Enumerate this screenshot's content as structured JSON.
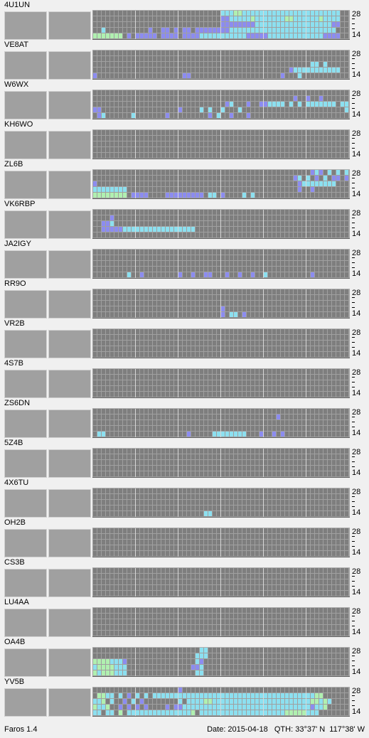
{
  "app": {
    "name": "Faros 1.4"
  },
  "status": {
    "date": "Date: 2015-04-18",
    "qth": "QTH: 33°37' N  117°38' W"
  },
  "axis": {
    "top_label": "28",
    "bottom_label": "14",
    "rows": 5,
    "columns": 60
  },
  "colors": {
    "empty": "#7e7e7e",
    "background": "#a0a0a0",
    "weak": "#8c8cf0",
    "medium": "#8ce0f0",
    "strong": "#b0f0b0",
    "very_strong": "#f0f0a0"
  },
  "beacons": [
    {
      "call": "4U1UN",
      "rows": [
        "                              2223322222222222222222222222",
        "                              1122222322222223322222232222",
        "                              1111111122222222222222222211",
        "  2          1  11 1 11 111111112222222222222222222222222 ",
        "3333333 1 11111 1111 1111222222222221111122222222222221111 "
      ]
    },
    {
      "call": "VE8AT",
      "rows": [
        "                                                            ",
        "                                                            ",
        "                                                   22 2     ",
        "                                              122222222222  ",
        "1                    11                     1   2           "
      ]
    },
    {
      "call": "W6WX",
      "rows": [
        "                                                            ",
        "                                               1  1  1      ",
        "                               12   1  112222 2 2 2222222 22",
        "11                  1    2 2  2   2                        2",
        " 12      2       1         1 2  1   1                       "
      ]
    },
    {
      "call": "KH6WO",
      "rows": [
        "",
        "",
        "",
        "",
        ""
      ]
    },
    {
      "call": "ZL6B",
      "rows": [
        "                                                   121 2 2 2",
        "                                               12 2 1 2 11 1",
        "1                                               122222222  ",
        "22222222                                        1  1       ",
        "33333333 1111    111111111 22 1    2 2               "
      ]
    },
    {
      "call": "VK6RBP",
      "rows": [
        "                                                            ",
        "    1                                                       ",
        "  112                                                       ",
        "  1111122222222222222222                                   ",
        "                                                            "
      ]
    },
    {
      "call": "JA2IGY",
      "rows": [
        "                                                            ",
        "                                                            ",
        "                                                            ",
        "                                                            ",
        "        2  1        1  1  11   1  1  1  2          1         "
      ]
    },
    {
      "call": "RR9O",
      "rows": [
        "",
        "",
        "",
        "                              1                              ",
        "                              1 22 1                         "
      ]
    },
    {
      "call": "VR2B",
      "rows": [
        "",
        "",
        "",
        "",
        ""
      ]
    },
    {
      "call": "4S7B",
      "rows": [
        "",
        "",
        "",
        "",
        ""
      ]
    },
    {
      "call": "ZS6DN",
      "rows": [
        "",
        "                                           1                ",
        "",
        "",
        " 22                   1     22222222   1  1 1             "
      ]
    },
    {
      "call": "5Z4B",
      "rows": [
        "",
        "",
        "",
        "",
        ""
      ]
    },
    {
      "call": "4X6TU",
      "rows": [
        "",
        "",
        "",
        "",
        "                          22                                 "
      ]
    },
    {
      "call": "OH2B",
      "rows": [
        "",
        "",
        "",
        "",
        ""
      ]
    },
    {
      "call": "CS3B",
      "rows": [
        "",
        "",
        "",
        "",
        ""
      ]
    },
    {
      "call": "LU4AA",
      "rows": [
        "",
        "",
        "",
        "",
        ""
      ]
    },
    {
      "call": "OA4B",
      "rows": [
        "                         22                                  ",
        "                        222                                  ",
        "33332221                21                                   ",
        "23333222               112                                   ",
        "32333222                22                                   "
      ]
    },
    {
      "call": "YV5B",
      "rows": [
        "                    1                                       ",
        " 3322 2 1 2 2 2222222222222222222222222222222222222233",
        "223 2  1 2 1        2 2222332222222222222222222222233232",
        "3223  1 1 1 1    1 112222222222222222222222222222221223",
        "22 22 3 2222222222222223 2222222222222222222233333222"
      ]
    }
  ]
}
